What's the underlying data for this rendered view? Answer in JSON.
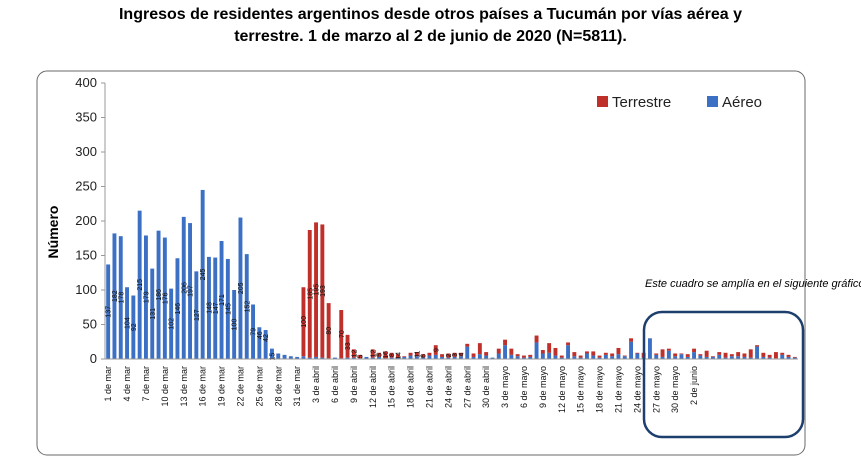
{
  "chart_data": {
    "type": "bar",
    "stacked": true,
    "title_line1": "Ingresos de residentes argentinos desde otros países a Tucumán por vías aérea y",
    "title_line2": "terrestre. 1 de marzo al 2 de junio de 2020 (N=5811).",
    "ylabel": "Número",
    "xlabel": "",
    "ylim": [
      0,
      400
    ],
    "yticks": [
      0,
      50,
      100,
      150,
      200,
      250,
      300,
      350,
      400
    ],
    "legend_position": "top-right",
    "grid": false,
    "annotation": "Este cuadro se amplía en el siguiente gráfico",
    "x_tick_labels": [
      "1 de mar",
      "4 de mar",
      "7 de mar",
      "10 de mar",
      "13 de mar",
      "16 de mar",
      "19 de mar",
      "22 de mar",
      "25 de mar",
      "28 de mar",
      "31 de mar",
      "3 de abril",
      "6 de abril",
      "9 de abril",
      "12 de abril",
      "15 de abril",
      "18 de abril",
      "21 de abril",
      "24 de abril",
      "27 de abril",
      "30 de abril",
      "3 de mayo",
      "6 de mayo",
      "9 de mayo",
      "12 de mayo",
      "15 de mayo",
      "18 de mayo",
      "21 de mayo",
      "24 de mayo",
      "27 de mayo",
      "30 de mayo",
      "2 de junio"
    ],
    "series": [
      {
        "name": "Terrestre",
        "color": "#c0302b",
        "values": [
          0,
          0,
          0,
          0,
          0,
          0,
          0,
          0,
          0,
          0,
          0,
          0,
          0,
          0,
          0,
          0,
          0,
          0,
          0,
          0,
          0,
          0,
          0,
          0,
          0,
          0,
          0,
          0,
          0,
          0,
          0,
          100,
          185,
          195,
          193,
          80,
          0,
          70,
          33,
          12,
          5,
          0,
          12,
          6,
          10,
          7,
          5,
          1,
          4,
          6,
          5,
          4,
          14,
          4,
          6,
          6,
          5,
          4,
          5,
          16,
          5,
          0,
          7,
          8,
          9,
          3,
          3,
          3,
          10,
          5,
          14,
          11,
          3,
          4,
          6,
          3,
          3,
          6,
          3,
          3,
          4,
          9,
          1,
          5,
          1,
          7,
          0,
          2,
          11,
          3,
          4,
          1,
          4,
          5,
          2,
          9,
          1,
          4,
          7,
          3,
          6,
          5,
          12,
          2,
          6,
          4,
          9,
          3,
          3,
          1
        ]
      },
      {
        "name": "Aéreo",
        "color": "#3b70c4",
        "values": [
          137,
          182,
          178,
          104,
          92,
          215,
          179,
          131,
          186,
          176,
          102,
          146,
          206,
          197,
          127,
          245,
          148,
          147,
          171,
          145,
          100,
          205,
          152,
          79,
          46,
          42,
          15,
          8,
          6,
          4,
          3,
          4,
          2,
          3,
          2,
          1,
          2,
          1,
          2,
          2,
          1,
          3,
          2,
          3,
          1,
          2,
          2,
          3,
          5,
          4,
          2,
          5,
          6,
          3,
          2,
          3,
          4,
          18,
          3,
          7,
          5,
          2,
          8,
          20,
          6,
          4,
          2,
          3,
          24,
          8,
          9,
          5,
          2,
          20,
          4,
          2,
          8,
          5,
          2,
          6,
          4,
          7,
          4,
          25,
          8,
          2,
          30,
          6,
          3,
          12,
          4,
          7,
          3,
          10,
          5,
          3,
          3,
          6,
          2,
          4,
          4,
          3,
          2,
          18,
          3,
          2,
          1,
          6,
          3,
          2
        ]
      }
    ],
    "data_labels_aereo": [
      "137",
      "182",
      "178",
      "104",
      "92",
      "215",
      "179",
      "131",
      "186",
      "176",
      "102",
      "146",
      "206",
      "197",
      "127",
      "245",
      "148",
      "147",
      "171",
      "145",
      "100",
      "205",
      "152",
      "79",
      "46",
      "42",
      "15"
    ],
    "data_labels_terrestre": [
      "100",
      "185",
      "195",
      "193",
      "80",
      "70",
      "33",
      "12",
      "5",
      "12",
      "5",
      "16",
      "8",
      "14",
      "11",
      "6",
      "9",
      "2",
      "3",
      "4"
    ]
  },
  "legend": {
    "terrestre_label": "Terrestre",
    "aereo_label": "Aéreo"
  }
}
